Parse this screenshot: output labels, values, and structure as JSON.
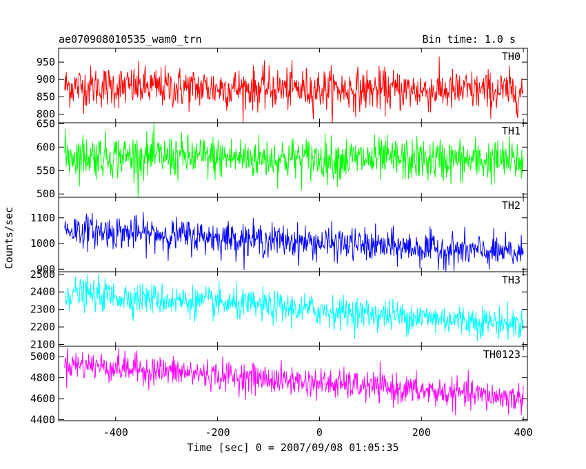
{
  "header": {
    "file_title": "ae070908010535_wam0_trn",
    "bin_time": "Bin time: 1.0 s"
  },
  "axes": {
    "ylabel": "Counts/sec",
    "xlabel": "Time [sec] 0 = 2007/09/08 01:05:35"
  },
  "chart_data": {
    "type": "line",
    "title": "ae070908010535_wam0_trn",
    "xlabel": "Time [sec] 0 = 2007/09/08 01:05:35",
    "ylabel": "Counts/sec",
    "xlim": [
      -512,
      408
    ],
    "xticks": [
      -400,
      -200,
      0,
      200,
      400
    ],
    "bin_time_s": 1.0,
    "panels": [
      {
        "name": "TH0",
        "color": "#ff0000",
        "ylim": [
          775,
          990
        ],
        "yticks": [
          800,
          850,
          900,
          950
        ],
        "x_start": -500,
        "x_end": 400,
        "trend_start": 880,
        "trend_end": 865,
        "noise_sigma": 30
      },
      {
        "name": "TH1",
        "color": "#00ff00",
        "ylim": [
          493,
          652
        ],
        "yticks": [
          500,
          550,
          600,
          650
        ],
        "x_start": -500,
        "x_end": 400,
        "trend_start": 582,
        "trend_end": 570,
        "noise_sigma": 23
      },
      {
        "name": "TH2",
        "color": "#0000ff",
        "ylim": [
          890,
          1180
        ],
        "yticks": [
          900,
          1000,
          1100
        ],
        "x_start": -500,
        "x_end": 400,
        "trend_start": 1055,
        "trend_end": 960,
        "noise_sigma": 32
      },
      {
        "name": "TH3",
        "color": "#00ffff",
        "ylim": [
          2090,
          2515
        ],
        "yticks": [
          2100,
          2200,
          2300,
          2400,
          2500
        ],
        "x_start": -500,
        "x_end": 400,
        "trend_start": 2395,
        "trend_end": 2215,
        "noise_sigma": 45
      },
      {
        "name": "TH0123",
        "color": "#ff00ff",
        "ylim": [
          4390,
          5100
        ],
        "yticks": [
          4400,
          4600,
          4800,
          5000
        ],
        "x_start": -500,
        "x_end": 400,
        "trend_start": 4935,
        "trend_end": 4600,
        "noise_sigma": 70
      }
    ]
  }
}
